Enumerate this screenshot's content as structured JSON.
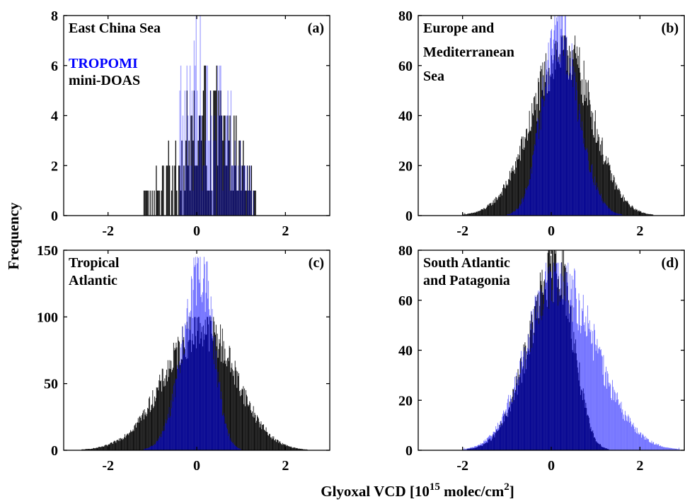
{
  "figure": {
    "ylabel": "Frequency",
    "xlabel_main": "Glyoxal VCD [10",
    "xlabel_sup1": "15",
    "xlabel_mid": " molec/cm",
    "xlabel_sup2": "2",
    "xlabel_end": "]"
  },
  "legend": {
    "tropomi": "TROPOMI",
    "minidoas": "mini-DOAS",
    "tropomi_color": "#0000ff",
    "minidoas_color": "#000000"
  },
  "chart_data": [
    {
      "type": "bar",
      "panel": "(a)",
      "title_lines": [
        "East China Sea"
      ],
      "xlim": [
        -3,
        3
      ],
      "ylim": [
        0,
        8
      ],
      "xticks": [
        -2,
        0,
        2
      ],
      "yticks": [
        0,
        2,
        4,
        6,
        8
      ],
      "series": [
        {
          "name": "mini-DOAS",
          "color": "#000000",
          "x_range": [
            -1.2,
            1.35
          ],
          "peak_x": 0.25,
          "peak_y": 6,
          "distribution": "scattered counts 1-6"
        },
        {
          "name": "TROPOMI",
          "color": "#0000ff",
          "x_range": [
            -0.4,
            1.3
          ],
          "peak_x": 0.1,
          "peak_y": 8,
          "distribution": "scattered counts 1-8"
        }
      ]
    },
    {
      "type": "bar",
      "panel": "(b)",
      "title_lines": [
        "Europe and",
        "Mediterranean",
        "Sea"
      ],
      "xlim": [
        -3,
        3
      ],
      "ylim": [
        0,
        80
      ],
      "xticks": [
        -2,
        0,
        2
      ],
      "yticks": [
        0,
        20,
        40,
        60,
        80
      ],
      "series": [
        {
          "name": "mini-DOAS",
          "color": "#000000",
          "x_range": [
            -2.0,
            2.3
          ],
          "peak_x": 0.3,
          "peak_y": 72
        },
        {
          "name": "TROPOMI",
          "color": "#0000ff",
          "x_range": [
            -1.0,
            1.6
          ],
          "peak_x": 0.15,
          "peak_y": 80
        }
      ]
    },
    {
      "type": "bar",
      "panel": "(c)",
      "title_lines": [
        "Tropical",
        "Atlantic"
      ],
      "xlim": [
        -3,
        3
      ],
      "ylim": [
        0,
        150
      ],
      "xticks": [
        -2,
        0,
        2
      ],
      "yticks": [
        0,
        50,
        100,
        150
      ],
      "series": [
        {
          "name": "mini-DOAS",
          "color": "#000000",
          "x_range": [
            -2.6,
            2.5
          ],
          "peak_x": 0.15,
          "peak_y": 100
        },
        {
          "name": "TROPOMI",
          "color": "#0000ff",
          "x_range": [
            -1.2,
            1.0
          ],
          "peak_x": 0.1,
          "peak_y": 145
        }
      ]
    },
    {
      "type": "bar",
      "panel": "(d)",
      "title_lines": [
        "South Atlantic",
        "and Patagonia"
      ],
      "xlim": [
        -3,
        3
      ],
      "ylim": [
        0,
        80
      ],
      "xticks": [
        -2,
        0,
        2
      ],
      "yticks": [
        0,
        20,
        40,
        60,
        80
      ],
      "series": [
        {
          "name": "mini-DOAS",
          "color": "#000000",
          "x_range": [
            -1.9,
            1.3
          ],
          "peak_x": 0.15,
          "peak_y": 80
        },
        {
          "name": "TROPOMI",
          "color": "#0000ff",
          "x_range": [
            -2.0,
            2.9
          ],
          "peak_x": 0.1,
          "peak_y": 75
        }
      ]
    }
  ]
}
